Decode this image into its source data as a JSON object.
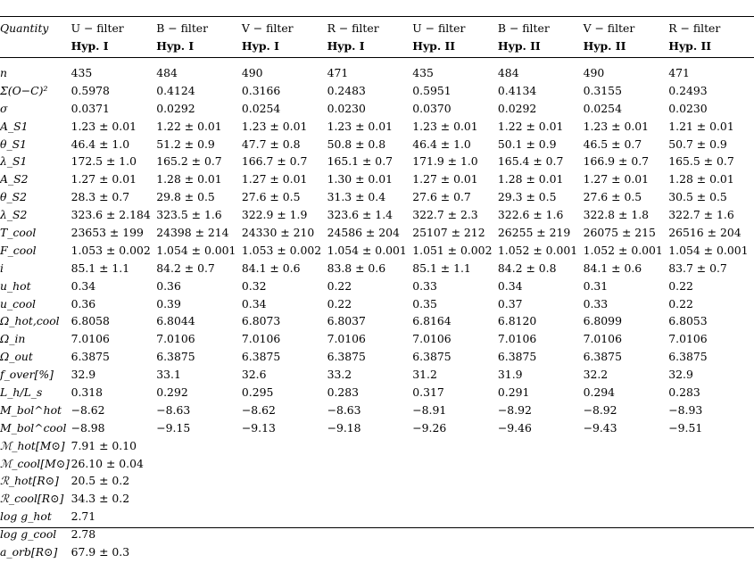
{
  "header": {
    "quantity": "Quantity",
    "filters": [
      "U − filter",
      "B − filter",
      "V − filter",
      "R − filter",
      "U − filter",
      "B − filter",
      "V − filter",
      "R − filter"
    ],
    "hyps": [
      "Hyp. I",
      "Hyp. I",
      "Hyp. I",
      "Hyp. I",
      "Hyp. II",
      "Hyp. II",
      "Hyp. II",
      "Hyp. II"
    ]
  },
  "rows": [
    {
      "label": "n",
      "values": [
        "435",
        "484",
        "490",
        "471",
        "435",
        "484",
        "490",
        "471"
      ]
    },
    {
      "label": "Σ(O−C)²",
      "values": [
        "0.5978",
        "0.4124",
        "0.3166",
        "0.2483",
        "0.5951",
        "0.4134",
        "0.3155",
        "0.2493"
      ]
    },
    {
      "label": "σ",
      "values": [
        "0.0371",
        "0.0292",
        "0.0254",
        "0.0230",
        "0.0370",
        "0.0292",
        "0.0254",
        "0.0230"
      ]
    },
    {
      "label": "A_S1",
      "values": [
        "1.23 ± 0.01",
        "1.22 ± 0.01",
        "1.23 ± 0.01",
        "1.23 ± 0.01",
        "1.23 ± 0.01",
        "1.22 ± 0.01",
        "1.23 ± 0.01",
        "1.21 ± 0.01"
      ]
    },
    {
      "label": "θ_S1",
      "values": [
        "46.4 ± 1.0",
        "51.2 ± 0.9",
        "47.7 ± 0.8",
        "50.8 ± 0.8",
        "46.4 ± 1.0",
        "50.1 ± 0.9",
        "46.5 ± 0.7",
        "50.7 ± 0.9"
      ]
    },
    {
      "label": "λ_S1",
      "values": [
        "172.5 ± 1.0",
        "165.2 ± 0.7",
        "166.7 ± 0.7",
        "165.1 ± 0.7",
        "171.9 ± 1.0",
        "165.4 ± 0.7",
        "166.9 ± 0.7",
        "165.5 ± 0.7"
      ]
    },
    {
      "label": "A_S2",
      "values": [
        "1.27 ± 0.01",
        "1.28 ± 0.01",
        "1.27 ± 0.01",
        "1.30 ± 0.01",
        "1.27 ± 0.01",
        "1.28 ± 0.01",
        "1.27 ± 0.01",
        "1.28 ± 0.01"
      ]
    },
    {
      "label": "θ_S2",
      "values": [
        "28.3 ± 0.7",
        "29.8 ± 0.5",
        "27.6 ± 0.5",
        "31.3 ± 0.4",
        "27.6 ± 0.7",
        "29.3 ± 0.5",
        "27.6 ± 0.5",
        "30.5 ± 0.5"
      ]
    },
    {
      "label": "λ_S2",
      "values": [
        "323.6 ± 2.184",
        "323.5 ± 1.6",
        "322.9 ± 1.9",
        "323.6 ± 1.4",
        "322.7 ± 2.3",
        "322.6 ± 1.6",
        "322.8 ± 1.8",
        "322.7 ± 1.6"
      ]
    },
    {
      "label": "T_cool",
      "values": [
        "23653 ± 199",
        "24398 ± 214",
        "24330 ± 210",
        "24586 ± 204",
        "25107 ± 212",
        "26255 ± 219",
        "26075 ± 215",
        "26516 ± 204"
      ]
    },
    {
      "label": "F_cool",
      "values": [
        "1.053 ± 0.002",
        "1.054 ± 0.001",
        "1.053 ± 0.002",
        "1.054 ± 0.001",
        "1.051 ± 0.002",
        "1.052 ± 0.001",
        "1.052 ± 0.001",
        "1.054 ± 0.001"
      ]
    },
    {
      "label": "i",
      "values": [
        "85.1 ± 1.1",
        "84.2 ± 0.7",
        "84.1 ± 0.6",
        "83.8 ± 0.6",
        "85.1 ± 1.1",
        "84.2 ± 0.8",
        "84.1 ± 0.6",
        "83.7 ± 0.7"
      ]
    },
    {
      "label": "u_hot",
      "values": [
        "0.34",
        "0.36",
        "0.32",
        "0.22",
        "0.33",
        "0.34",
        "0.31",
        "0.22"
      ]
    },
    {
      "label": "u_cool",
      "values": [
        "0.36",
        "0.39",
        "0.34",
        "0.22",
        "0.35",
        "0.37",
        "0.33",
        "0.22"
      ]
    },
    {
      "label": "Ω_hot,cool",
      "values": [
        "6.8058",
        "6.8044",
        "6.8073",
        "6.8037",
        "6.8164",
        "6.8120",
        "6.8099",
        "6.8053"
      ]
    },
    {
      "label": "Ω_in",
      "values": [
        "7.0106",
        "7.0106",
        "7.0106",
        "7.0106",
        "7.0106",
        "7.0106",
        "7.0106",
        "7.0106"
      ]
    },
    {
      "label": "Ω_out",
      "values": [
        "6.3875",
        "6.3875",
        "6.3875",
        "6.3875",
        "6.3875",
        "6.3875",
        "6.3875",
        "6.3875"
      ]
    },
    {
      "label": "f_over[%]",
      "values": [
        "32.9",
        "33.1",
        "32.6",
        "33.2",
        "31.2",
        "31.9",
        "32.2",
        "32.9"
      ]
    },
    {
      "label": "L_h/L_s",
      "values": [
        "0.318",
        "0.292",
        "0.295",
        "0.283",
        "0.317",
        "0.291",
        "0.294",
        "0.283"
      ]
    },
    {
      "label": "M_bol^hot",
      "values": [
        "−8.62",
        "−8.63",
        "−8.62",
        "−8.63",
        "−8.91",
        "−8.92",
        "−8.92",
        "−8.93"
      ]
    },
    {
      "label": "M_bol^cool",
      "values": [
        "−8.98",
        "−9.15",
        "−9.13",
        "−9.18",
        "−9.26",
        "−9.46",
        "−9.43",
        "−9.51"
      ]
    },
    {
      "label": "ℳ_hot[M⊙]",
      "values": [
        "7.91 ± 0.10",
        "",
        "",
        "",
        "",
        "",
        "",
        ""
      ]
    },
    {
      "label": "ℳ_cool[M⊙]",
      "values": [
        "26.10 ± 0.04",
        "",
        "",
        "",
        "",
        "",
        "",
        ""
      ]
    },
    {
      "label": "ℛ_hot[R⊙]",
      "values": [
        "20.5 ± 0.2",
        "",
        "",
        "",
        "",
        "",
        "",
        ""
      ]
    },
    {
      "label": "ℛ_cool[R⊙]",
      "values": [
        "34.3 ± 0.2",
        "",
        "",
        "",
        "",
        "",
        "",
        ""
      ]
    },
    {
      "label": "log g_hot",
      "values": [
        "2.71",
        "",
        "",
        "",
        "",
        "",
        "",
        ""
      ]
    },
    {
      "label": "log g_cool",
      "values": [
        "2.78",
        "",
        "",
        "",
        "",
        "",
        "",
        ""
      ]
    },
    {
      "label": "a_orb[R⊙]",
      "values": [
        "67.9 ± 0.3",
        "",
        "",
        "",
        "",
        "",
        "",
        ""
      ]
    }
  ]
}
